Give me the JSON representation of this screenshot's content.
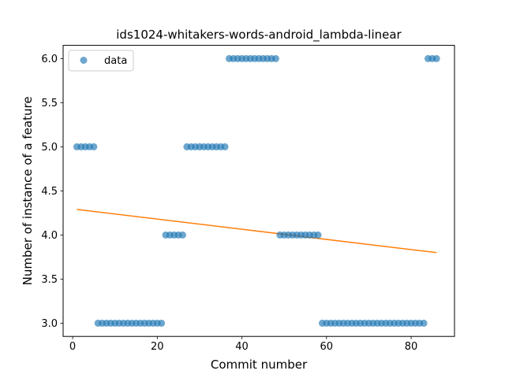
{
  "chart_data": {
    "type": "scatter",
    "title": "ids1024-whitakers-words-android_lambda-linear",
    "xlabel": "Commit number",
    "ylabel": "Number of instance of a feature",
    "xlim": [
      -2.25,
      90.25
    ],
    "ylim": [
      2.85,
      6.15
    ],
    "xticks": [
      0,
      20,
      40,
      60,
      80
    ],
    "xtick_labels": [
      "0",
      "20",
      "40",
      "60",
      "80"
    ],
    "yticks": [
      3.0,
      3.5,
      4.0,
      4.5,
      5.0,
      5.5,
      6.0
    ],
    "ytick_labels": [
      "3.0",
      "3.5",
      "4.0",
      "4.5",
      "5.0",
      "5.5",
      "6.0"
    ],
    "grid": false,
    "legend_position": "top-left",
    "series": [
      {
        "name": "data",
        "kind": "scatter",
        "color": "#1f77b4",
        "x": [
          1,
          2,
          3,
          4,
          5,
          6,
          7,
          8,
          9,
          10,
          11,
          12,
          13,
          14,
          15,
          16,
          17,
          18,
          19,
          20,
          21,
          22,
          23,
          24,
          25,
          26,
          27,
          28,
          29,
          30,
          31,
          32,
          33,
          34,
          35,
          36,
          37,
          38,
          39,
          40,
          41,
          42,
          43,
          44,
          45,
          46,
          47,
          48,
          49,
          50,
          51,
          52,
          53,
          54,
          55,
          56,
          57,
          58,
          59,
          60,
          61,
          62,
          63,
          64,
          65,
          66,
          67,
          68,
          69,
          70,
          71,
          72,
          73,
          74,
          75,
          76,
          77,
          78,
          79,
          80,
          81,
          82,
          83,
          84,
          85,
          86
        ],
        "y": [
          5,
          5,
          5,
          5,
          5,
          3,
          3,
          3,
          3,
          3,
          3,
          3,
          3,
          3,
          3,
          3,
          3,
          3,
          3,
          3,
          3,
          4,
          4,
          4,
          4,
          4,
          5,
          5,
          5,
          5,
          5,
          5,
          5,
          5,
          5,
          5,
          6,
          6,
          6,
          6,
          6,
          6,
          6,
          6,
          6,
          6,
          6,
          6,
          4,
          4,
          4,
          4,
          4,
          4,
          4,
          4,
          4,
          4,
          3,
          3,
          3,
          3,
          3,
          3,
          3,
          3,
          3,
          3,
          3,
          3,
          3,
          3,
          3,
          3,
          3,
          3,
          3,
          3,
          3,
          3,
          3,
          3,
          3,
          6,
          6,
          6
        ]
      },
      {
        "name": "",
        "kind": "line",
        "color": "#ff7f0e",
        "x": [
          1,
          86
        ],
        "y": [
          4.29,
          3.8
        ]
      }
    ]
  }
}
